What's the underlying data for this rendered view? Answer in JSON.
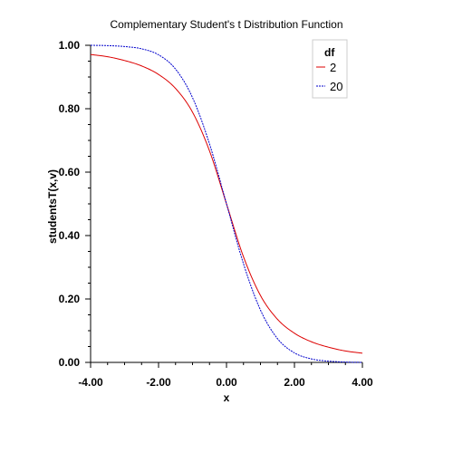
{
  "chart_data": {
    "type": "line",
    "title": "Complementary Student's t Distribution Function",
    "xlabel": "x",
    "ylabel": "studentsT(x,v)",
    "xlim": [
      -4,
      4
    ],
    "ylim": [
      0,
      1
    ],
    "x_ticks": [
      "-4.00",
      "-2.00",
      "0.00",
      "2.00",
      "4.00"
    ],
    "y_ticks": [
      "0.00",
      "0.20",
      "0.40",
      "0.60",
      "0.80",
      "1.00"
    ],
    "grid": false,
    "legend": {
      "title": "df",
      "placement": "top-right"
    },
    "series": [
      {
        "name": "2",
        "color": "#dd0000",
        "style": "solid",
        "x": [
          -4,
          -3.5,
          -3,
          -2.5,
          -2,
          -1.5,
          -1,
          -0.5,
          0,
          0.5,
          1,
          1.5,
          2,
          2.5,
          3,
          3.5,
          4
        ],
        "values": [
          0.971,
          0.964,
          0.952,
          0.935,
          0.908,
          0.864,
          0.789,
          0.667,
          0.5,
          0.333,
          0.211,
          0.136,
          0.092,
          0.065,
          0.048,
          0.036,
          0.029
        ]
      },
      {
        "name": "20",
        "color": "#0000cc",
        "style": "dotted",
        "x": [
          -4,
          -3.5,
          -3,
          -2.5,
          -2,
          -1.5,
          -1,
          -0.5,
          0,
          0.5,
          1,
          1.5,
          2,
          2.5,
          3,
          3.5,
          4
        ],
        "values": [
          1.0,
          0.999,
          0.996,
          0.989,
          0.97,
          0.925,
          0.835,
          0.689,
          0.5,
          0.311,
          0.165,
          0.075,
          0.03,
          0.011,
          0.004,
          0.001,
          0.0
        ]
      }
    ]
  }
}
